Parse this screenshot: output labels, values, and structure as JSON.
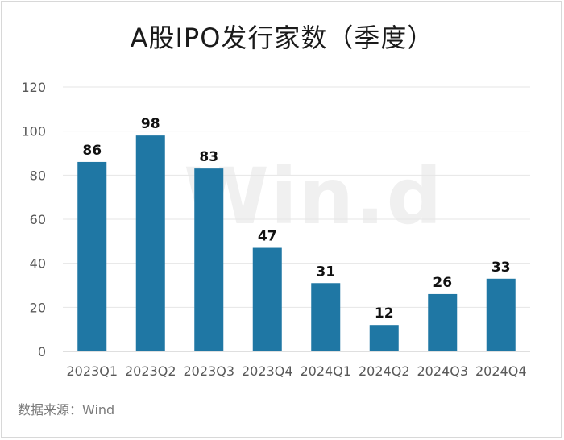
{
  "title": "A股IPO发行家数（季度）",
  "source": "数据来源：Wind",
  "watermark": "Win.d",
  "colors": {
    "bar": "#1f77a4",
    "grid": "#e6e6e6",
    "axis": "#bfbfbf"
  },
  "chart_data": {
    "type": "bar",
    "categories": [
      "2023Q1",
      "2023Q2",
      "2023Q3",
      "2023Q4",
      "2024Q1",
      "2024Q2",
      "2024Q3",
      "2024Q4"
    ],
    "values": [
      86,
      98,
      83,
      47,
      31,
      12,
      26,
      33
    ],
    "ylim": [
      0,
      120
    ],
    "yticks": [
      0,
      20,
      40,
      60,
      80,
      100,
      120
    ],
    "grid": true,
    "data_labels": true
  }
}
